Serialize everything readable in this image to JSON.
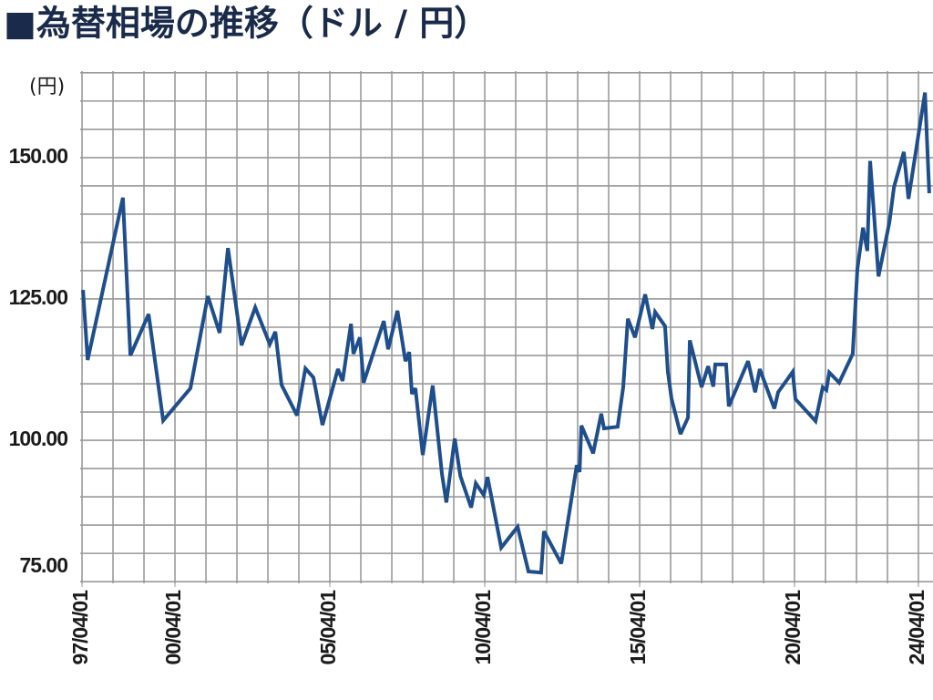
{
  "chart_data": {
    "type": "line",
    "title": "■為替相場の推移（ドル / 円）",
    "y_unit": "(円)",
    "x": [
      1997.28,
      1997.43,
      1998.57,
      1998.81,
      1999.4,
      1999.87,
      2000.75,
      2001.31,
      2001.69,
      2001.96,
      2002.4,
      2002.84,
      2003.31,
      2003.49,
      2003.69,
      2004.19,
      2004.46,
      2004.72,
      2005.01,
      2005.51,
      2005.66,
      2005.93,
      2006.01,
      2006.22,
      2006.34,
      2006.99,
      2007.13,
      2007.43,
      2007.69,
      2007.81,
      2007.9,
      2008.01,
      2008.25,
      2008.57,
      2008.87,
      2009.01,
      2009.28,
      2009.46,
      2009.81,
      2009.96,
      2010.22,
      2010.34,
      2010.78,
      2011.31,
      2011.66,
      2012.07,
      2012.16,
      2012.72,
      2013.22,
      2013.31,
      2013.37,
      2013.75,
      2014.01,
      2014.1,
      2014.54,
      2014.72,
      2014.87,
      2015.1,
      2015.43,
      2015.66,
      2015.75,
      2016.07,
      2016.16,
      2016.28,
      2016.57,
      2016.81,
      2016.87,
      2017.25,
      2017.46,
      2017.63,
      2017.69,
      2018.04,
      2018.13,
      2018.75,
      2018.98,
      2019.13,
      2019.6,
      2019.72,
      2020.19,
      2020.28,
      2020.93,
      2021.16,
      2021.28,
      2021.37,
      2021.69,
      2022.13,
      2022.28,
      2022.46,
      2022.6,
      2022.69,
      2022.96,
      2023.31,
      2023.46,
      2023.78,
      2023.93,
      2024.46,
      2024.6
    ],
    "series": [
      {
        "name": "ドル / 円",
        "color": "#1f4e8c",
        "values": [
          126.6,
          114.2,
          142.9,
          115.0,
          122.3,
          103.5,
          109.2,
          125.5,
          119.0,
          134.0,
          116.8,
          123.5,
          117.0,
          119.2,
          109.8,
          104.4,
          112.7,
          111.1,
          102.7,
          112.6,
          110.5,
          120.6,
          115.3,
          118.2,
          110.2,
          121.1,
          116.1,
          122.9,
          114.0,
          115.6,
          108.2,
          109.2,
          97.4,
          109.7,
          94.0,
          89.0,
          100.3,
          93.7,
          88.1,
          92.4,
          90.3,
          93.5,
          81.0,
          84.7,
          76.8,
          76.6,
          83.9,
          78.2,
          95.6,
          94.4,
          102.6,
          97.7,
          104.7,
          102.1,
          102.4,
          109.4,
          121.5,
          118.2,
          125.8,
          119.7,
          122.7,
          120.2,
          112.1,
          107.4,
          101.1,
          104.0,
          117.7,
          109.4,
          113.1,
          109.5,
          113.4,
          113.4,
          106.0,
          114.0,
          108.5,
          112.6,
          105.6,
          108.5,
          112.1,
          107.3,
          103.4,
          109.4,
          108.9,
          112.0,
          110.2,
          115.3,
          130.3,
          137.6,
          133.5,
          149.4,
          129.0,
          138.5,
          144.8,
          151.0,
          142.7,
          161.5,
          143.7
        ]
      }
    ],
    "xlim": [
      1997.19,
      2024.72
    ],
    "ylim": [
      74.7,
      165.3
    ],
    "xticks": [
      {
        "value": 1997.25,
        "label": "97/04/01"
      },
      {
        "value": 2000.25,
        "label": "00/04/01"
      },
      {
        "value": 2005.25,
        "label": "05/04/01"
      },
      {
        "value": 2010.25,
        "label": "10/04/01"
      },
      {
        "value": 2015.25,
        "label": "15/04/01"
      },
      {
        "value": 2020.25,
        "label": "20/04/01"
      },
      {
        "value": 2024.25,
        "label": "24/04/01"
      }
    ],
    "yticks": [
      {
        "value": 75,
        "label": "75.00"
      },
      {
        "value": 100,
        "label": "100.00"
      },
      {
        "value": 125,
        "label": "125.00"
      },
      {
        "value": 150,
        "label": "150.00"
      }
    ],
    "xgrid": [
      1997.25,
      1998.25,
      1999.25,
      2000.25,
      2001.25,
      2002.25,
      2003.25,
      2004.25,
      2005.25,
      2006.25,
      2007.25,
      2008.25,
      2009.25,
      2010.25,
      2011.25,
      2012.25,
      2013.25,
      2014.25,
      2015.25,
      2016.25,
      2017.25,
      2018.25,
      2019.25,
      2020.25,
      2021.25,
      2022.25,
      2023.25,
      2024.25
    ],
    "ygrid": [
      75,
      80,
      85,
      90,
      95,
      100,
      105,
      110,
      115,
      120,
      125,
      130,
      135,
      140,
      145,
      150,
      155,
      160,
      165
    ],
    "grid": true
  }
}
